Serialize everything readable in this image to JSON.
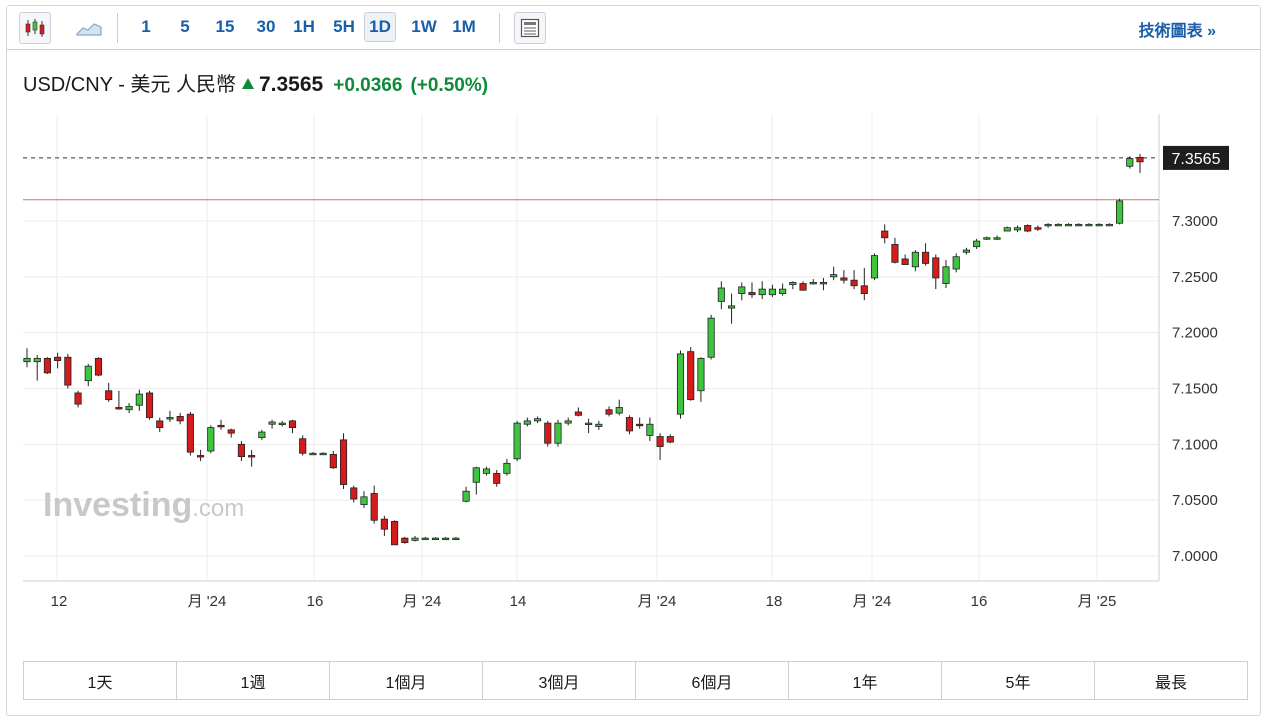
{
  "toolbar": {
    "intervals": [
      {
        "label": "1",
        "active": false
      },
      {
        "label": "5",
        "active": false
      },
      {
        "label": "15",
        "active": false
      },
      {
        "label": "30",
        "active": false
      },
      {
        "label": "1H",
        "active": false
      },
      {
        "label": "5H",
        "active": false
      },
      {
        "label": "1D",
        "active": true
      },
      {
        "label": "1W",
        "active": false
      },
      {
        "label": "1M",
        "active": false
      }
    ],
    "tech_chart_label": "技術圖表 »"
  },
  "quote": {
    "name": "USD/CNY - 美元 人民幣",
    "price": "7.3565",
    "change": "+0.0366",
    "change_pct": "(+0.50%)",
    "up_color": "#0e8a3a"
  },
  "watermark": {
    "brand": "Investing",
    "suffix": ".com"
  },
  "ranges": [
    "1天",
    "1週",
    "1個月",
    "3個月",
    "6個月",
    "1年",
    "5年",
    "最長"
  ],
  "chart_data": {
    "type": "candlestick",
    "ylim": [
      6.98,
      7.38
    ],
    "yticks": [
      "7.3000",
      "7.2500",
      "7.2000",
      "7.1500",
      "7.1000",
      "7.0500",
      "7.0000"
    ],
    "ytick_values": [
      7.3,
      7.25,
      7.2,
      7.15,
      7.1,
      7.05,
      7.0
    ],
    "xticks": [
      "12",
      "月 '24",
      "16",
      "月 '24",
      "14",
      "月 '24",
      "18",
      "月 '24",
      "16",
      "月 '25"
    ],
    "last_price": 7.3565,
    "last_price_label": "7.3565",
    "reference_line": 7.319,
    "up_color": "#3fc43f",
    "down_color": "#d41c1c",
    "candles": [
      [
        7.174,
        7.186,
        7.169,
        7.177
      ],
      [
        7.174,
        7.18,
        7.157,
        7.177
      ],
      [
        7.177,
        7.178,
        7.163,
        7.164
      ],
      [
        7.178,
        7.182,
        7.168,
        7.175
      ],
      [
        7.178,
        7.181,
        7.15,
        7.153
      ],
      [
        7.146,
        7.148,
        7.133,
        7.136
      ],
      [
        7.157,
        7.172,
        7.152,
        7.17
      ],
      [
        7.177,
        7.178,
        7.161,
        7.162
      ],
      [
        7.148,
        7.155,
        7.138,
        7.14
      ],
      [
        7.133,
        7.148,
        7.131,
        7.132
      ],
      [
        7.131,
        7.137,
        7.128,
        7.134
      ],
      [
        7.135,
        7.149,
        7.13,
        7.145
      ],
      [
        7.146,
        7.148,
        7.122,
        7.124
      ],
      [
        7.121,
        7.124,
        7.111,
        7.115
      ],
      [
        7.123,
        7.13,
        7.12,
        7.124
      ],
      [
        7.125,
        7.128,
        7.118,
        7.121
      ],
      [
        7.127,
        7.129,
        7.09,
        7.093
      ],
      [
        7.09,
        7.095,
        7.085,
        7.089
      ],
      [
        7.094,
        7.117,
        7.092,
        7.115
      ],
      [
        7.117,
        7.122,
        7.113,
        7.116
      ],
      [
        7.113,
        7.114,
        7.106,
        7.11
      ],
      [
        7.1,
        7.103,
        7.085,
        7.089
      ],
      [
        7.09,
        7.095,
        7.08,
        7.089
      ],
      [
        7.106,
        7.113,
        7.104,
        7.111
      ],
      [
        7.118,
        7.122,
        7.114,
        7.12
      ],
      [
        7.119,
        7.121,
        7.116,
        7.119
      ],
      [
        7.121,
        7.122,
        7.11,
        7.115
      ],
      [
        7.105,
        7.108,
        7.09,
        7.092
      ],
      [
        7.092,
        7.093,
        7.091,
        7.092
      ],
      [
        7.092,
        7.093,
        7.091,
        7.092
      ],
      [
        7.091,
        7.094,
        7.078,
        7.079
      ],
      [
        7.104,
        7.11,
        7.06,
        7.064
      ],
      [
        7.061,
        7.063,
        7.048,
        7.051
      ],
      [
        7.046,
        7.058,
        7.043,
        7.053
      ],
      [
        7.056,
        7.063,
        7.029,
        7.032
      ],
      [
        7.033,
        7.036,
        7.018,
        7.024
      ],
      [
        7.031,
        7.032,
        7.01,
        7.01
      ],
      [
        7.016,
        7.017,
        7.011,
        7.012
      ],
      [
        7.014,
        7.018,
        7.013,
        7.016
      ],
      [
        7.016,
        7.017,
        7.015,
        7.016
      ],
      [
        7.016,
        7.017,
        7.015,
        7.016
      ],
      [
        7.016,
        7.017,
        7.015,
        7.016
      ],
      [
        7.016,
        7.017,
        7.015,
        7.016
      ],
      [
        7.049,
        7.062,
        7.048,
        7.058
      ],
      [
        7.066,
        7.08,
        7.055,
        7.079
      ],
      [
        7.074,
        7.08,
        7.072,
        7.078
      ],
      [
        7.074,
        7.077,
        7.062,
        7.065
      ],
      [
        7.074,
        7.087,
        7.072,
        7.083
      ],
      [
        7.087,
        7.121,
        7.085,
        7.119
      ],
      [
        7.118,
        7.124,
        7.116,
        7.121
      ],
      [
        7.121,
        7.125,
        7.119,
        7.123
      ],
      [
        7.119,
        7.121,
        7.098,
        7.101
      ],
      [
        7.101,
        7.122,
        7.098,
        7.119
      ],
      [
        7.119,
        7.124,
        7.117,
        7.121
      ],
      [
        7.129,
        7.133,
        7.125,
        7.126
      ],
      [
        7.119,
        7.123,
        7.11,
        7.119
      ],
      [
        7.116,
        7.121,
        7.113,
        7.118
      ],
      [
        7.131,
        7.134,
        7.125,
        7.127
      ],
      [
        7.128,
        7.14,
        7.126,
        7.133
      ],
      [
        7.124,
        7.126,
        7.109,
        7.112
      ],
      [
        7.118,
        7.124,
        7.114,
        7.117
      ],
      [
        7.108,
        7.124,
        7.103,
        7.118
      ],
      [
        7.107,
        7.11,
        7.086,
        7.098
      ],
      [
        7.107,
        7.109,
        7.101,
        7.102
      ],
      [
        7.127,
        7.184,
        7.123,
        7.181
      ],
      [
        7.183,
        7.187,
        7.139,
        7.14
      ],
      [
        7.148,
        7.178,
        7.138,
        7.177
      ],
      [
        7.178,
        7.216,
        7.176,
        7.213
      ],
      [
        7.228,
        7.246,
        7.221,
        7.24
      ],
      [
        7.222,
        7.235,
        7.208,
        7.224
      ],
      [
        7.235,
        7.245,
        7.229,
        7.241
      ],
      [
        7.236,
        7.245,
        7.231,
        7.234
      ],
      [
        7.234,
        7.246,
        7.23,
        7.239
      ],
      [
        7.234,
        7.243,
        7.232,
        7.239
      ],
      [
        7.235,
        7.244,
        7.233,
        7.239
      ],
      [
        7.243,
        7.246,
        7.239,
        7.245
      ],
      [
        7.244,
        7.246,
        7.238,
        7.238
      ],
      [
        7.245,
        7.248,
        7.243,
        7.245
      ],
      [
        7.245,
        7.249,
        7.238,
        7.245
      ],
      [
        7.25,
        7.259,
        7.247,
        7.252
      ],
      [
        7.249,
        7.256,
        7.244,
        7.247
      ],
      [
        7.247,
        7.256,
        7.239,
        7.242
      ],
      [
        7.242,
        7.258,
        7.229,
        7.235
      ],
      [
        7.249,
        7.271,
        7.247,
        7.269
      ],
      [
        7.291,
        7.297,
        7.28,
        7.285
      ],
      [
        7.279,
        7.285,
        7.262,
        7.263
      ],
      [
        7.266,
        7.27,
        7.261,
        7.261
      ],
      [
        7.259,
        7.274,
        7.255,
        7.272
      ],
      [
        7.272,
        7.28,
        7.26,
        7.262
      ],
      [
        7.267,
        7.27,
        7.239,
        7.249
      ],
      [
        7.244,
        7.265,
        7.24,
        7.259
      ],
      [
        7.257,
        7.271,
        7.254,
        7.268
      ],
      [
        7.272,
        7.276,
        7.27,
        7.274
      ],
      [
        7.277,
        7.284,
        7.275,
        7.282
      ],
      [
        7.284,
        7.286,
        7.283,
        7.285
      ],
      [
        7.285,
        7.287,
        7.283,
        7.285
      ],
      [
        7.291,
        7.295,
        7.292,
        7.294
      ],
      [
        7.292,
        7.296,
        7.29,
        7.294
      ],
      [
        7.296,
        7.297,
        7.29,
        7.291
      ],
      [
        7.294,
        7.296,
        7.291,
        7.293
      ],
      [
        7.296,
        7.298,
        7.294,
        7.297
      ],
      [
        7.297,
        7.298,
        7.296,
        7.297
      ],
      [
        7.297,
        7.298,
        7.296,
        7.297
      ],
      [
        7.297,
        7.298,
        7.296,
        7.297
      ],
      [
        7.297,
        7.298,
        7.296,
        7.297
      ],
      [
        7.297,
        7.298,
        7.296,
        7.297
      ],
      [
        7.297,
        7.298,
        7.296,
        7.297
      ],
      [
        7.298,
        7.32,
        7.297,
        7.318
      ],
      [
        7.349,
        7.358,
        7.347,
        7.356
      ],
      [
        7.357,
        7.36,
        7.343,
        7.353
      ]
    ]
  }
}
